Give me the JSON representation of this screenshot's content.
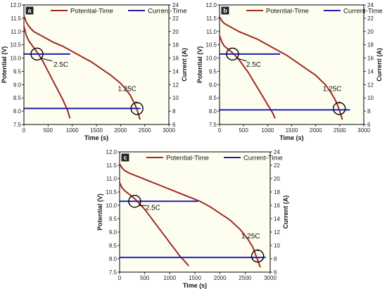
{
  "chart_data": [
    {
      "type": "line",
      "panel_label": "a",
      "xlabel": "Time (s)",
      "ylabel": "Potential (V)",
      "y2label": "Current (A)",
      "xlim": [
        0,
        3000
      ],
      "ylim": [
        7.5,
        12.0
      ],
      "y2lim": [
        6,
        24
      ],
      "x_ticks": [
        0,
        500,
        1000,
        1500,
        2000,
        2500,
        3000
      ],
      "y_ticks": [
        7.5,
        8.0,
        8.5,
        9.0,
        9.5,
        10.0,
        10.5,
        11.0,
        11.5,
        12.0
      ],
      "y2_ticks": [
        6,
        8,
        10,
        12,
        14,
        16,
        18,
        20,
        22,
        24
      ],
      "legend": [
        "Potential-Time",
        "Current-Time"
      ],
      "legend_position": "top",
      "colors": {
        "potential": "#9e2a22",
        "current": "#1f1fb4",
        "background": "#fefef0"
      },
      "series": [
        {
          "name": "Potential-Time",
          "axis": "left",
          "x": [
            0,
            50,
            100,
            200,
            300,
            400,
            500,
            600,
            700,
            800,
            900,
            950
          ],
          "y": [
            11.2,
            10.85,
            10.65,
            10.4,
            10.15,
            9.85,
            9.5,
            9.15,
            8.8,
            8.45,
            8.05,
            7.75
          ]
        },
        {
          "name": "Potential-Time",
          "axis": "left",
          "x": [
            0,
            50,
            100,
            200,
            400,
            600,
            800,
            1000,
            1200,
            1400,
            1600,
            1800,
            2000,
            2100,
            2200,
            2300,
            2350,
            2400
          ],
          "y": [
            11.6,
            11.35,
            11.2,
            11.0,
            10.8,
            10.6,
            10.45,
            10.25,
            10.05,
            9.85,
            9.6,
            9.35,
            9.05,
            8.85,
            8.6,
            8.25,
            8.0,
            7.7
          ]
        },
        {
          "name": "Current-Time",
          "axis": "right",
          "x": [
            0,
            950
          ],
          "y": [
            16.6,
            16.6
          ]
        },
        {
          "name": "Current-Time",
          "axis": "right",
          "x": [
            0,
            2400
          ],
          "y": [
            8.4,
            8.4
          ]
        }
      ],
      "annotations": [
        {
          "text": "2.5C",
          "circle_at": [
            270,
            10.15
          ]
        },
        {
          "text": "1.25C",
          "circle_at": [
            2340,
            8.1
          ]
        }
      ]
    },
    {
      "type": "line",
      "panel_label": "b",
      "xlabel": "Time (s)",
      "ylabel": "Potential (V)",
      "y2label": "Current (A)",
      "xlim": [
        0,
        3000
      ],
      "ylim": [
        7.5,
        12.0
      ],
      "y2lim": [
        6,
        24
      ],
      "x_ticks": [
        0,
        500,
        1000,
        1500,
        2000,
        2500,
        3000
      ],
      "y_ticks": [
        7.5,
        8.0,
        8.5,
        9.0,
        9.5,
        10.0,
        10.5,
        11.0,
        11.5,
        12.0
      ],
      "y2_ticks": [
        6,
        8,
        10,
        12,
        14,
        16,
        18,
        20,
        22,
        24
      ],
      "legend": [
        "Potential-Time",
        "Current-Time"
      ],
      "legend_position": "top",
      "colors": {
        "potential": "#9e2a22",
        "current": "#1f1fb4",
        "background": "#fefef0"
      },
      "series": [
        {
          "name": "Potential-Time",
          "axis": "left",
          "x": [
            0,
            50,
            100,
            200,
            300,
            400,
            500,
            600,
            700,
            800,
            900,
            1000,
            1100,
            1150
          ],
          "y": [
            10.85,
            10.6,
            10.45,
            10.3,
            10.15,
            9.95,
            9.7,
            9.45,
            9.15,
            8.85,
            8.55,
            8.25,
            7.95,
            7.75
          ]
        },
        {
          "name": "Potential-Time",
          "axis": "left",
          "x": [
            0,
            50,
            100,
            200,
            400,
            600,
            800,
            1000,
            1200,
            1400,
            1600,
            1800,
            2000,
            2200,
            2300,
            2400,
            2450,
            2500,
            2550
          ],
          "y": [
            11.55,
            11.4,
            11.3,
            11.2,
            11.0,
            10.85,
            10.7,
            10.5,
            10.3,
            10.1,
            9.85,
            9.6,
            9.35,
            9.0,
            8.75,
            8.45,
            8.25,
            8.0,
            7.7
          ]
        },
        {
          "name": "Current-Time",
          "axis": "right",
          "x": [
            0,
            1250
          ],
          "y": [
            16.6,
            16.6
          ]
        },
        {
          "name": "Current-Time",
          "axis": "right",
          "x": [
            0,
            2700
          ],
          "y": [
            8.2,
            8.2
          ]
        }
      ],
      "annotations": [
        {
          "text": "2.5C",
          "circle_at": [
            270,
            10.15
          ]
        },
        {
          "text": "1.25C",
          "circle_at": [
            2490,
            8.1
          ]
        }
      ]
    },
    {
      "type": "line",
      "panel_label": "c",
      "xlabel": "Time (s)",
      "ylabel": "Potential (V)",
      "y2label": "Current (A)",
      "xlim": [
        0,
        3000
      ],
      "ylim": [
        7.5,
        12.0
      ],
      "y2lim": [
        6,
        24
      ],
      "x_ticks": [
        0,
        500,
        1000,
        1500,
        2000,
        2500,
        3000
      ],
      "y_ticks": [
        7.5,
        8.0,
        8.5,
        9.0,
        9.5,
        10.0,
        10.5,
        11.0,
        11.5,
        12.0
      ],
      "y2_ticks": [
        6,
        8,
        10,
        12,
        14,
        16,
        18,
        20,
        22,
        24
      ],
      "legend": [
        "Potential-Time",
        "Current-Time"
      ],
      "legend_position": "top",
      "colors": {
        "potential": "#9e2a22",
        "current": "#1f1fb4",
        "background": "#fefef0"
      },
      "series": [
        {
          "name": "Potential-Time",
          "axis": "left",
          "x": [
            0,
            50,
            100,
            200,
            300,
            400,
            500,
            600,
            700,
            800,
            900,
            1000,
            1100,
            1200,
            1300,
            1370
          ],
          "y": [
            10.85,
            10.65,
            10.55,
            10.4,
            10.25,
            10.05,
            9.85,
            9.6,
            9.35,
            9.1,
            8.85,
            8.6,
            8.35,
            8.1,
            7.9,
            7.75
          ]
        },
        {
          "name": "Potential-Time",
          "axis": "left",
          "x": [
            0,
            50,
            100,
            200,
            400,
            600,
            800,
            1000,
            1200,
            1400,
            1600,
            1800,
            2000,
            2200,
            2400,
            2550,
            2650,
            2700,
            2750,
            2800
          ],
          "y": [
            11.55,
            11.4,
            11.3,
            11.2,
            11.05,
            10.9,
            10.75,
            10.6,
            10.45,
            10.3,
            10.15,
            9.95,
            9.7,
            9.45,
            9.1,
            8.75,
            8.45,
            8.2,
            7.95,
            7.7
          ]
        },
        {
          "name": "Current-Time",
          "axis": "right",
          "x": [
            0,
            1550
          ],
          "y": [
            16.6,
            16.6
          ]
        },
        {
          "name": "Current-Time",
          "axis": "right",
          "x": [
            0,
            2900
          ],
          "y": [
            8.2,
            8.2
          ]
        }
      ],
      "annotations": [
        {
          "text": "2.5C",
          "circle_at": [
            300,
            10.15
          ]
        },
        {
          "text": "1.25C",
          "circle_at": [
            2750,
            8.1
          ]
        }
      ]
    }
  ]
}
